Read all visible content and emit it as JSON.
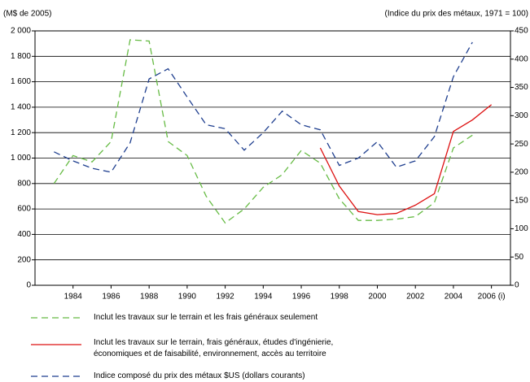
{
  "chart_data": {
    "type": "line",
    "y_label": "(M$ de 2005)",
    "y2_label": "(Indice du prix des métaux, 1971 = 100)",
    "x": [
      1983,
      1984,
      1985,
      1986,
      1987,
      1988,
      1989,
      1990,
      1991,
      1992,
      1993,
      1994,
      1995,
      1996,
      1997,
      1998,
      1999,
      2000,
      2001,
      2002,
      2003,
      2004,
      2005,
      2006
    ],
    "xlim": [
      1982,
      2007
    ],
    "xticks": [
      1984,
      1986,
      1988,
      1990,
      1992,
      1994,
      1996,
      1998,
      2000,
      2002,
      2004,
      {
        "value": 2006,
        "label": "2006 (i)"
      }
    ],
    "ylim": [
      0,
      2000
    ],
    "yticks": [
      0,
      200,
      400,
      600,
      800,
      {
        "value": 1000,
        "label": "1 000"
      },
      {
        "value": 1200,
        "label": "1 200"
      },
      {
        "value": 1400,
        "label": "1 400"
      },
      {
        "value": 1600,
        "label": "1 600"
      },
      {
        "value": 1800,
        "label": "1 800"
      },
      {
        "value": 2000,
        "label": "2 000"
      }
    ],
    "y2lim": [
      0,
      450
    ],
    "y2ticks": [
      0,
      50,
      100,
      150,
      200,
      250,
      300,
      350,
      400,
      450
    ],
    "grid": true,
    "series": [
      {
        "name": "Inclut les travaux sur le terrain et les frais généraux seulement",
        "color": "#66bb44",
        "dash": "8,5",
        "values": [
          800,
          1020,
          970,
          1130,
          1930,
          1920,
          1130,
          1020,
          700,
          490,
          600,
          770,
          870,
          1060,
          960,
          680,
          510,
          510,
          520,
          540,
          650,
          1080,
          1180,
          null
        ]
      },
      {
        "name": "Inclut les travaux sur le terrain, frais généraux, études d'ingénierie, économiques et de faisabilité, environnement, accès au territoire",
        "color": "#dd1111",
        "dash": "",
        "values": [
          null,
          null,
          null,
          null,
          null,
          null,
          null,
          null,
          null,
          null,
          null,
          null,
          null,
          null,
          1080,
          780,
          580,
          555,
          565,
          630,
          720,
          1210,
          1300,
          1420
        ]
      },
      {
        "name": "Indice composé du prix des métaux $US (dollars courants)",
        "color": "#1f3f8f",
        "dash": "8,5",
        "axis": "y2",
        "values": [
          236,
          220,
          207,
          200,
          252,
          365,
          383,
          333,
          284,
          277,
          239,
          270,
          308,
          284,
          275,
          212,
          225,
          254,
          209,
          220,
          263,
          369,
          430,
          null
        ]
      }
    ]
  }
}
